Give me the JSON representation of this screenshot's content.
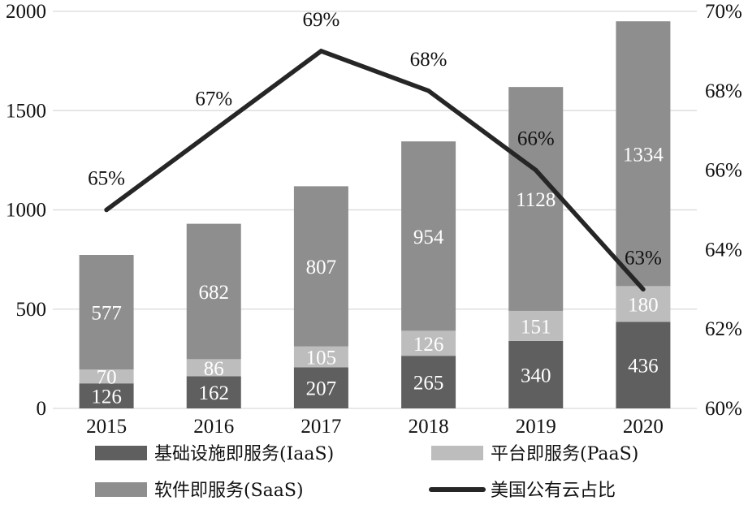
{
  "chart_data": {
    "type": "bar",
    "stacked": true,
    "categories": [
      "2015",
      "2016",
      "2017",
      "2018",
      "2019",
      "2020"
    ],
    "series": [
      {
        "name": "基础设施即服务(IaaS)",
        "values": [
          126,
          162,
          207,
          265,
          340,
          436
        ],
        "color": "#5f5f5f"
      },
      {
        "name": "平台即服务(PaaS)",
        "values": [
          70,
          86,
          105,
          126,
          151,
          180
        ],
        "color": "#bdbdbd"
      },
      {
        "name": "软件即服务(SaaS)",
        "values": [
          577,
          682,
          807,
          954,
          1128,
          1334
        ],
        "color": "#8e8e8e"
      }
    ],
    "line_series": {
      "name": "美国公有云占比",
      "values": [
        65,
        67,
        69,
        68,
        66,
        63
      ],
      "labels": [
        "65%",
        "67%",
        "69%",
        "68%",
        "66%",
        "63%"
      ],
      "color": "#262626",
      "axis": "right"
    },
    "ylim": [
      0,
      2000
    ],
    "yticks": [
      0,
      500,
      1000,
      1500,
      2000
    ],
    "y2lim": [
      60,
      70
    ],
    "y2ticks": [
      "60%",
      "62%",
      "64%",
      "66%",
      "68%",
      "70%"
    ],
    "grid": "horizontal",
    "legend_position": "bottom"
  }
}
